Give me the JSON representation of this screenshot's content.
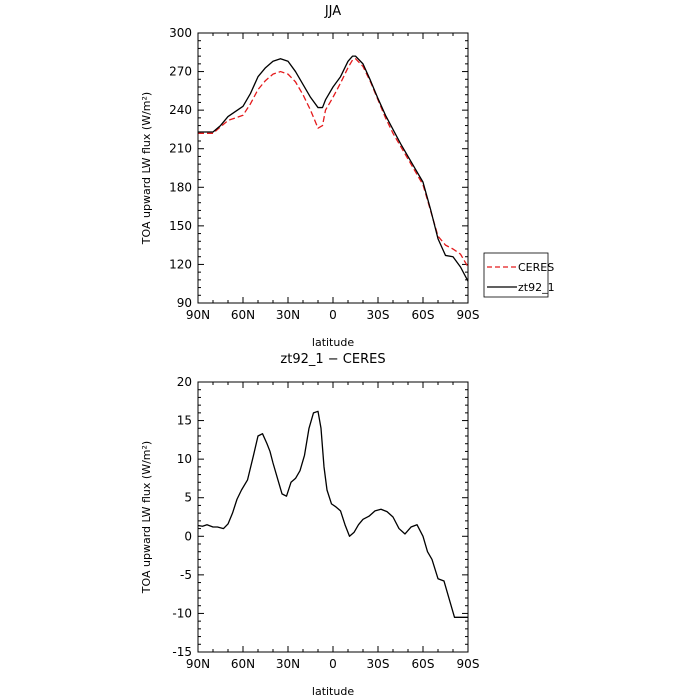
{
  "chart_data": [
    {
      "type": "line",
      "title": "JJA",
      "xlabel": "latitude",
      "ylabel": "TOA upward LW flux (W/m²)",
      "x": [
        -90,
        -85,
        -80,
        -75,
        -70,
        -65,
        -60,
        -55,
        -50,
        -45,
        -40,
        -35,
        -30,
        -25,
        -20,
        -15,
        -10,
        -7,
        -5,
        0,
        5,
        10,
        13,
        15,
        20,
        25,
        30,
        35,
        40,
        45,
        50,
        55,
        60,
        65,
        70,
        75,
        80,
        85,
        90
      ],
      "xlim": [
        -90,
        90
      ],
      "ylim": [
        90,
        300
      ],
      "x_ticks": [
        -90,
        -60,
        -30,
        0,
        30,
        60,
        90
      ],
      "x_tick_labels": [
        "90N",
        "60N",
        "30N",
        "0",
        "30S",
        "60S",
        "90S"
      ],
      "y_ticks": [
        90,
        120,
        150,
        180,
        210,
        240,
        270,
        300
      ],
      "series": [
        {
          "name": "CERES",
          "color": "#e41a1c",
          "dash": "dashed",
          "values": [
            222,
            222,
            222,
            227,
            232,
            234,
            236,
            245,
            256,
            263,
            268,
            270,
            268,
            262,
            252,
            240,
            226,
            228,
            240,
            250,
            261,
            273,
            279,
            280,
            274,
            262,
            248,
            234,
            222,
            212,
            202,
            192,
            182,
            162,
            142,
            135,
            132,
            128,
            118
          ]
        },
        {
          "name": "zt92_1",
          "color": "#000000",
          "dash": "solid",
          "values": [
            223,
            223,
            223,
            228,
            235,
            239,
            243,
            253,
            266,
            273,
            278,
            280,
            278,
            270,
            260,
            250,
            242,
            242,
            248,
            258,
            266,
            278,
            282,
            282,
            276,
            263,
            249,
            236,
            225,
            214,
            204,
            194,
            184,
            163,
            140,
            127,
            126,
            118,
            107
          ]
        }
      ],
      "legend": "right"
    },
    {
      "type": "line",
      "title": "zt92_1 − CERES",
      "xlabel": "latitude",
      "ylabel": "TOA upward LW flux (W/m²)",
      "x": [
        -90,
        -87,
        -84,
        -80,
        -77,
        -73,
        -70,
        -67,
        -64,
        -61,
        -57,
        -53,
        -50,
        -47,
        -44,
        -42,
        -40,
        -37,
        -34,
        -31,
        -28,
        -25,
        -22,
        -19,
        -16,
        -13,
        -10,
        -8,
        -6,
        -4,
        -1,
        2,
        5,
        8,
        11,
        14,
        17,
        20,
        24,
        28,
        32,
        36,
        40,
        44,
        48,
        52,
        56,
        60,
        63,
        66,
        70,
        74,
        78,
        81,
        84,
        87,
        90
      ],
      "xlim": [
        -90,
        90
      ],
      "ylim": [
        -15,
        20
      ],
      "x_ticks": [
        -90,
        -60,
        -30,
        0,
        30,
        60,
        90
      ],
      "x_tick_labels": [
        "90N",
        "60N",
        "30N",
        "0",
        "30S",
        "60S",
        "90S"
      ],
      "y_ticks": [
        -15,
        -10,
        -5,
        0,
        5,
        10,
        15,
        20
      ],
      "series": [
        {
          "name": "",
          "color": "#000000",
          "dash": "solid",
          "values": [
            1.4,
            1.3,
            1.5,
            1.2,
            1.2,
            1.0,
            1.6,
            3.0,
            4.8,
            6.0,
            7.3,
            10.5,
            13.0,
            13.3,
            12.0,
            11.0,
            9.5,
            7.5,
            5.5,
            5.2,
            7.0,
            7.5,
            8.5,
            10.5,
            14.0,
            16.0,
            16.2,
            14.0,
            9.0,
            6.0,
            4.2,
            3.8,
            3.3,
            1.5,
            0.0,
            0.5,
            1.5,
            2.2,
            2.6,
            3.3,
            3.5,
            3.2,
            2.5,
            1.0,
            0.3,
            1.2,
            1.5,
            0.0,
            -2.0,
            -3.0,
            -5.5,
            -5.8,
            -8.5,
            -10.5,
            -10.5,
            -10.5,
            -10.5
          ]
        }
      ]
    }
  ]
}
